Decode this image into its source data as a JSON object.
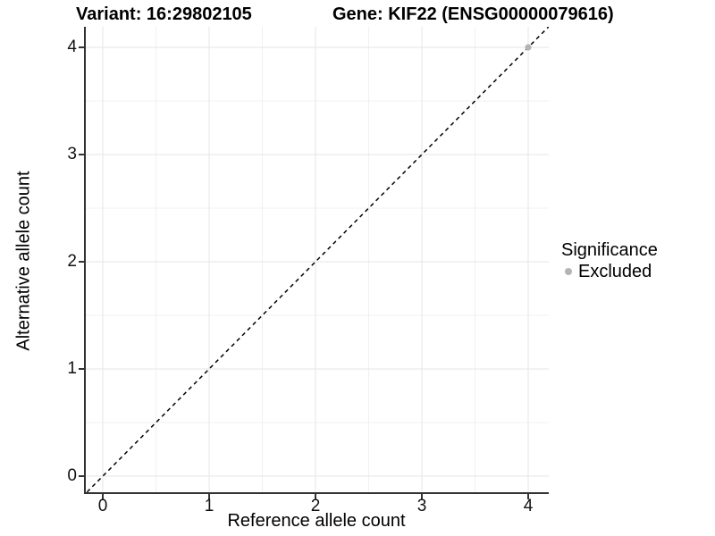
{
  "titles": {
    "variant": "Variant: 16:29802105",
    "gene": "Gene: KIF22 (ENSG00000079616)"
  },
  "legend": {
    "title": "Significance",
    "items": [
      {
        "label": "Excluded",
        "color": "#b4b4b4"
      }
    ]
  },
  "chart_data": {
    "type": "scatter",
    "title": "Variant: 16:29802105 / Gene: KIF22 (ENSG00000079616)",
    "xlabel": "Reference allele count",
    "ylabel": "Alternative allele count",
    "x_ticks": [
      0,
      1,
      2,
      3,
      4
    ],
    "y_ticks": [
      0,
      1,
      2,
      3,
      4
    ],
    "xlim": [
      -0.18,
      4.19
    ],
    "ylim": [
      -0.18,
      4.19
    ],
    "grid": true,
    "minor_grid_step": 0.5,
    "legend_position": "right",
    "series": [
      {
        "name": "Excluded",
        "color": "#b4b4b4",
        "marker": "circle",
        "points": [
          {
            "x": 4,
            "y": 4
          }
        ]
      }
    ],
    "reference_line": {
      "kind": "identity",
      "equation": "y = x",
      "style": "dashed",
      "color": "#000000"
    },
    "colors": {
      "grid_major": "#e6e6e6",
      "grid_minor": "#f0f0f0",
      "axis": "#333333"
    }
  }
}
